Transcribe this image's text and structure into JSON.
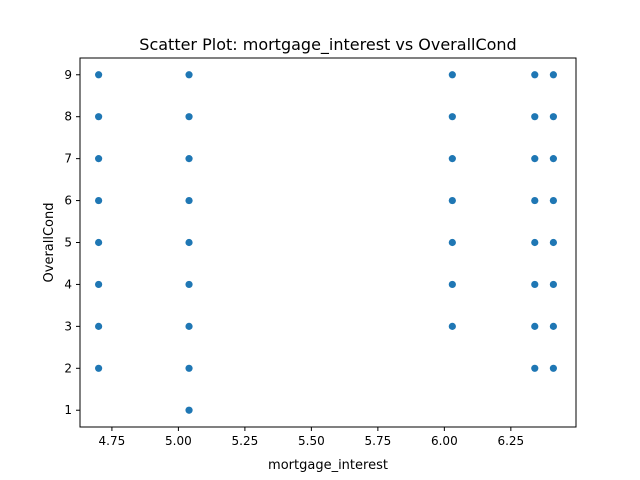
{
  "chart_data": {
    "type": "scatter",
    "title": "Scatter Plot: mortgage_interest vs OverallCond",
    "xlabel": "mortgage_interest",
    "ylabel": "OverallCond",
    "xlim": [
      4.63,
      6.495
    ],
    "ylim": [
      0.6,
      9.4
    ],
    "xticks": [
      4.75,
      5.0,
      5.25,
      5.5,
      5.75,
      6.0,
      6.25
    ],
    "xtick_labels": [
      "4.75",
      "5.00",
      "5.25",
      "5.50",
      "5.75",
      "6.00",
      "6.25"
    ],
    "yticks": [
      1,
      2,
      3,
      4,
      5,
      6,
      7,
      8,
      9
    ],
    "ytick_labels": [
      "1",
      "2",
      "3",
      "4",
      "5",
      "6",
      "7",
      "8",
      "9"
    ],
    "grid": false,
    "legend": "none",
    "marker_color": "#1f77b4",
    "series": [
      {
        "points": [
          {
            "x": 4.7,
            "y": 2
          },
          {
            "x": 4.7,
            "y": 3
          },
          {
            "x": 4.7,
            "y": 4
          },
          {
            "x": 4.7,
            "y": 5
          },
          {
            "x": 4.7,
            "y": 6
          },
          {
            "x": 4.7,
            "y": 7
          },
          {
            "x": 4.7,
            "y": 8
          },
          {
            "x": 4.7,
            "y": 9
          },
          {
            "x": 5.04,
            "y": 1
          },
          {
            "x": 5.04,
            "y": 2
          },
          {
            "x": 5.04,
            "y": 3
          },
          {
            "x": 5.04,
            "y": 4
          },
          {
            "x": 5.04,
            "y": 5
          },
          {
            "x": 5.04,
            "y": 6
          },
          {
            "x": 5.04,
            "y": 7
          },
          {
            "x": 5.04,
            "y": 8
          },
          {
            "x": 5.04,
            "y": 9
          },
          {
            "x": 6.03,
            "y": 3
          },
          {
            "x": 6.03,
            "y": 4
          },
          {
            "x": 6.03,
            "y": 5
          },
          {
            "x": 6.03,
            "y": 6
          },
          {
            "x": 6.03,
            "y": 7
          },
          {
            "x": 6.03,
            "y": 8
          },
          {
            "x": 6.03,
            "y": 9
          },
          {
            "x": 6.34,
            "y": 2
          },
          {
            "x": 6.34,
            "y": 3
          },
          {
            "x": 6.34,
            "y": 4
          },
          {
            "x": 6.34,
            "y": 5
          },
          {
            "x": 6.34,
            "y": 6
          },
          {
            "x": 6.34,
            "y": 7
          },
          {
            "x": 6.34,
            "y": 8
          },
          {
            "x": 6.34,
            "y": 9
          },
          {
            "x": 6.41,
            "y": 2
          },
          {
            "x": 6.41,
            "y": 3
          },
          {
            "x": 6.41,
            "y": 4
          },
          {
            "x": 6.41,
            "y": 5
          },
          {
            "x": 6.41,
            "y": 6
          },
          {
            "x": 6.41,
            "y": 7
          },
          {
            "x": 6.41,
            "y": 8
          },
          {
            "x": 6.41,
            "y": 9
          }
        ]
      }
    ]
  }
}
